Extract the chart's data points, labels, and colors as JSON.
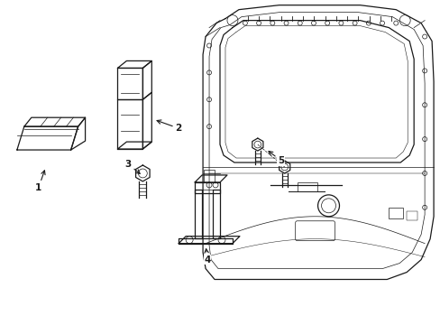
{
  "bg_color": "#ffffff",
  "line_color": "#1a1a1a",
  "fig_width": 4.89,
  "fig_height": 3.6,
  "dpi": 100,
  "lw_main": 0.9,
  "lw_thin": 0.5,
  "lw_thick": 1.4
}
